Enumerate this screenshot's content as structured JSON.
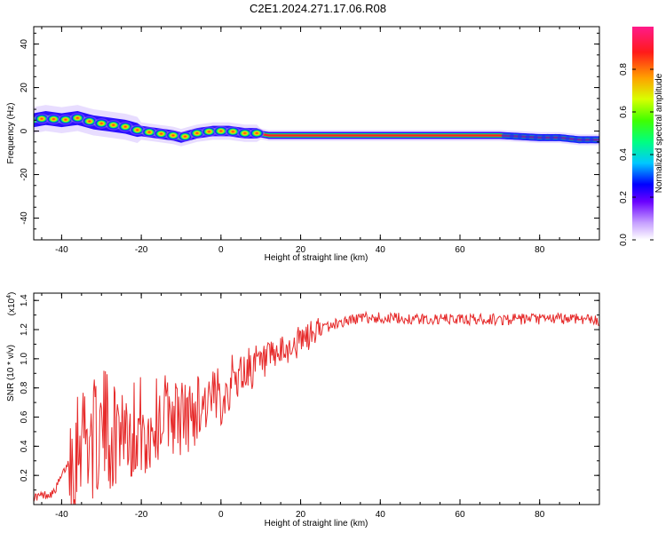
{
  "title": "C2E1.2024.271.17.06.R08",
  "colors": {
    "line": "#e62a2a",
    "axis": "#000000"
  },
  "chart_data": [
    {
      "type": "heatmap",
      "name": "frequency-spectrogram",
      "xlabel": "Height of straight line (km)",
      "ylabel": "Frequency (Hz)",
      "xlim": [
        -47,
        95
      ],
      "ylim": [
        -50,
        48
      ],
      "xticks": [
        "-40",
        "-20",
        "0",
        "20",
        "40",
        "60",
        "80"
      ],
      "xtick_values": [
        -40,
        -20,
        0,
        20,
        40,
        60,
        80
      ],
      "yticks": [
        "-40",
        "-20",
        "0",
        "20",
        "40"
      ],
      "ytick_values": [
        -40,
        -20,
        0,
        20,
        40
      ],
      "colorbar": {
        "label": "Normalized spectral amplitude",
        "range": [
          0,
          1
        ],
        "ticks": [
          "0.0",
          "0.2",
          "0.4",
          "0.6",
          "0.8"
        ],
        "tick_values": [
          0.0,
          0.2,
          0.4,
          0.6,
          0.8
        ]
      },
      "ridge": {
        "x": [
          -47,
          -44,
          -40,
          -36,
          -32,
          -28,
          -24,
          -20,
          -16,
          -12,
          -10,
          -6,
          -2,
          2,
          6,
          9,
          12,
          20,
          40,
          60,
          70,
          80,
          85,
          90,
          95
        ],
        "freq": [
          5,
          6,
          5,
          6,
          4,
          3,
          2,
          0,
          -1,
          -2,
          -3,
          -1,
          0,
          0,
          -1,
          -1,
          -2,
          -2,
          -2,
          -2,
          -2,
          -3,
          -3,
          -4,
          -4
        ]
      }
    },
    {
      "type": "line",
      "name": "snr-trace",
      "xlabel": "Height of straight line (km)",
      "ylabel": "SNR (10 * v/v)",
      "scale_label": "(x10",
      "scale_exp": "4",
      "scale_close": ")",
      "xlim": [
        -47,
        95
      ],
      "ylim": [
        0,
        1.45
      ],
      "xticks": [
        "-40",
        "-20",
        "0",
        "20",
        "40",
        "60",
        "80"
      ],
      "xtick_values": [
        -40,
        -20,
        0,
        20,
        40,
        60,
        80
      ],
      "yticks": [
        "0.2",
        "0.4",
        "0.6",
        "0.8",
        "1.0",
        "1.2",
        "1.4"
      ],
      "ytick_values": [
        0.2,
        0.4,
        0.6,
        0.8,
        1.0,
        1.2,
        1.4
      ],
      "x": [
        -47,
        -42,
        -39,
        -37,
        -35,
        -33,
        -31,
        -29,
        -27,
        -25,
        -23,
        -21,
        -20,
        -19,
        -17,
        -15,
        -13,
        -11,
        -8,
        -5,
        -2,
        0,
        3,
        5,
        8,
        10,
        13,
        16,
        20,
        25,
        30,
        35,
        40,
        50,
        60,
        70,
        80,
        90,
        95
      ],
      "y": [
        0.05,
        0.08,
        0.25,
        0.35,
        0.55,
        0.45,
        0.45,
        0.55,
        0.45,
        0.6,
        0.5,
        0.55,
        0.55,
        0.45,
        0.55,
        0.6,
        0.65,
        0.6,
        0.6,
        0.7,
        0.7,
        0.75,
        0.85,
        0.9,
        0.95,
        0.95,
        1.0,
        1.05,
        1.12,
        1.2,
        1.25,
        1.28,
        1.28,
        1.27,
        1.27,
        1.27,
        1.27,
        1.28,
        1.26
      ]
    }
  ]
}
